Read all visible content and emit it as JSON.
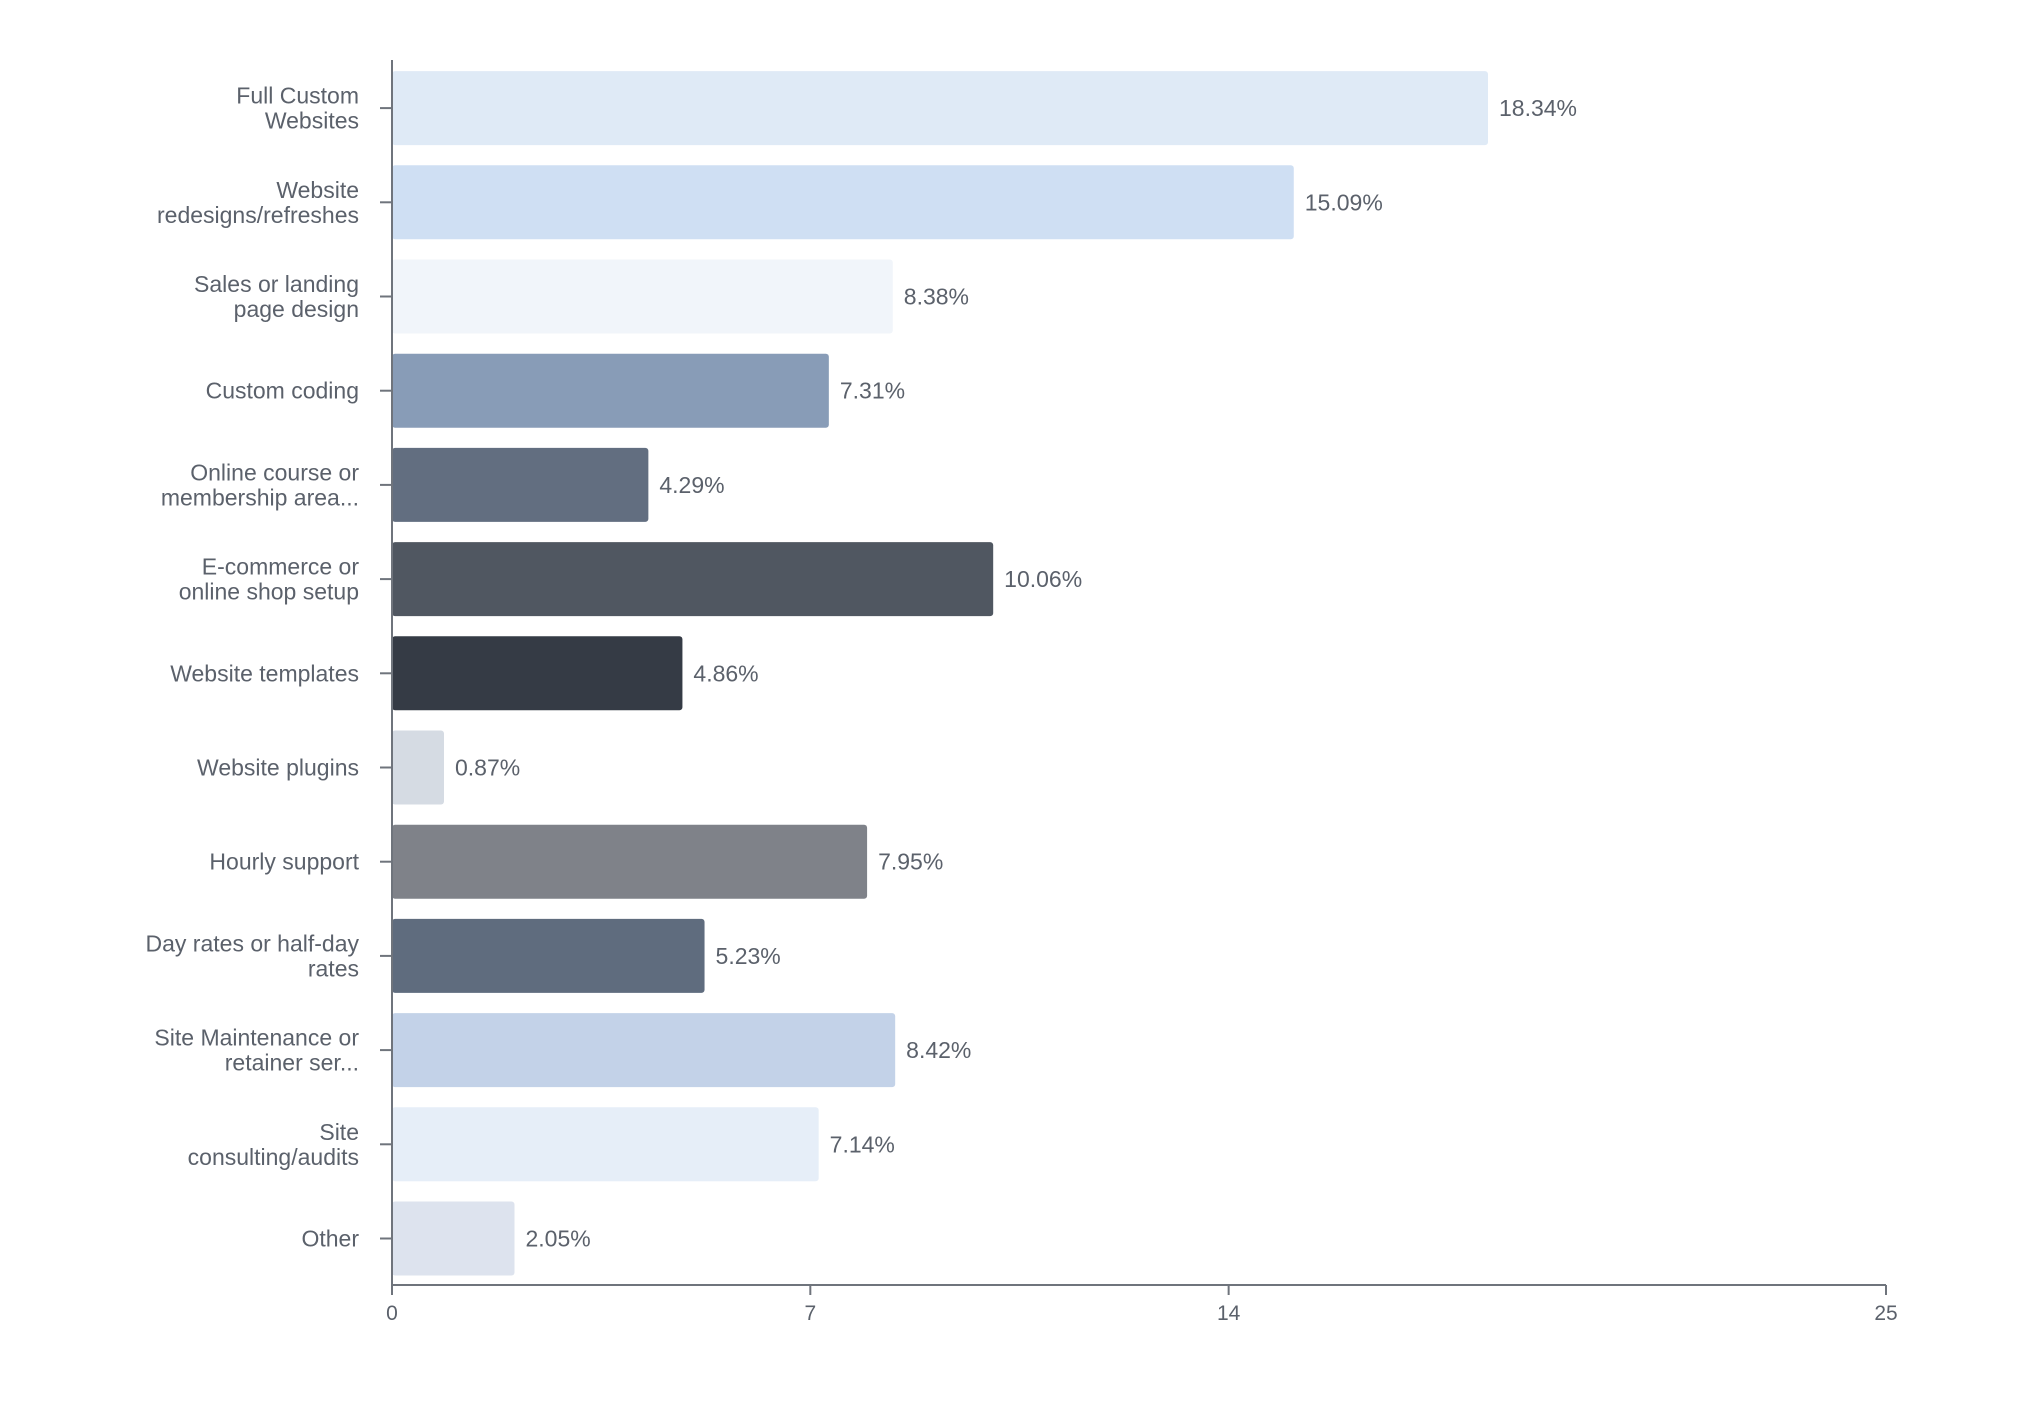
{
  "chart_data": {
    "type": "bar",
    "orientation": "horizontal",
    "categories": [
      [
        "Full Custom",
        "Websites"
      ],
      [
        "Website",
        "redesigns/refreshes"
      ],
      [
        "Sales or landing",
        "page design"
      ],
      [
        "Custom coding"
      ],
      [
        "Online course or",
        "membership area..."
      ],
      [
        "E-commerce or",
        "online shop setup"
      ],
      [
        "Website templates"
      ],
      [
        "Website plugins"
      ],
      [
        "Hourly support"
      ],
      [
        "Day rates or half-day",
        "rates"
      ],
      [
        "Site Maintenance or",
        "retainer ser..."
      ],
      [
        "Site",
        "consulting/audits"
      ],
      [
        "Other"
      ]
    ],
    "values": [
      18.34,
      15.09,
      8.38,
      7.31,
      4.29,
      10.06,
      4.86,
      0.87,
      7.95,
      5.23,
      8.42,
      7.14,
      2.05
    ],
    "value_labels": [
      "18.34%",
      "15.09%",
      "8.38%",
      "7.31%",
      "4.29%",
      "10.06%",
      "4.86%",
      "0.87%",
      "7.95%",
      "5.23%",
      "8.42%",
      "7.14%",
      "2.05%"
    ],
    "colors": [
      "#dfeaf6",
      "#cfdff3",
      "#f1f5fa",
      "#889cb7",
      "#626e80",
      "#505761",
      "#353b45",
      "#d5dbe3",
      "#7f8289",
      "#5f6c7e",
      "#c3d2e8",
      "#e6eef8",
      "#dde3ee"
    ],
    "x_ticks": [
      0,
      7,
      14,
      25
    ],
    "xlim": [
      0,
      25
    ],
    "title": "",
    "xlabel": "",
    "ylabel": "",
    "grid": false,
    "legend": "none"
  }
}
